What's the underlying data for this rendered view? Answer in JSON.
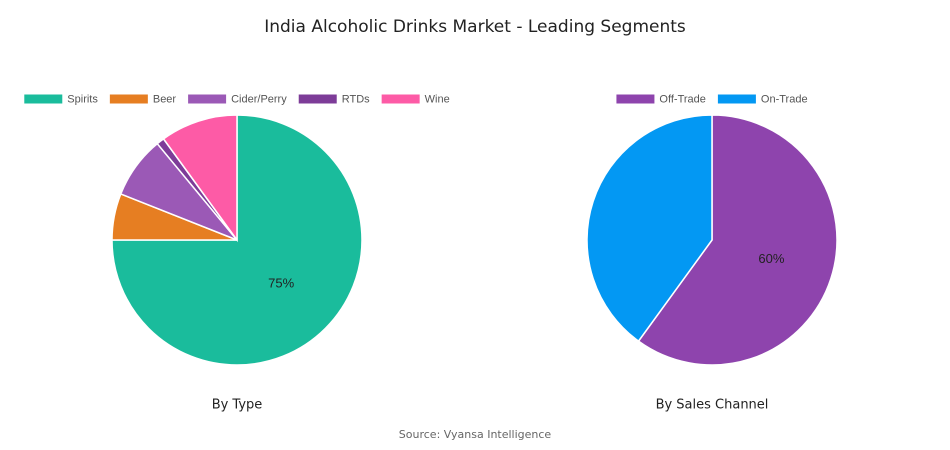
{
  "title": "India Alcoholic Drinks Market - Leading Segments",
  "source": "Source: Vyansa Intelligence",
  "chart_data": [
    {
      "type": "pie",
      "title": "By Type",
      "categories": [
        "Spirits",
        "Beer",
        "Cider/Perry",
        "RTDs",
        "Wine"
      ],
      "values": [
        75,
        6,
        8,
        1,
        10
      ],
      "value_labels": [
        "75%",
        null,
        null,
        null,
        null
      ],
      "colors": [
        "#1abc9c",
        "#e67e22",
        "#9b59b6",
        "#7d3c98",
        "#fd5ba6"
      ]
    },
    {
      "type": "pie",
      "title": "By Sales Channel",
      "categories": [
        "Off-Trade",
        "On-Trade"
      ],
      "values": [
        60,
        40
      ],
      "value_labels": [
        "60%",
        null
      ],
      "colors": [
        "#8e44ad",
        "#0398f3"
      ]
    }
  ]
}
